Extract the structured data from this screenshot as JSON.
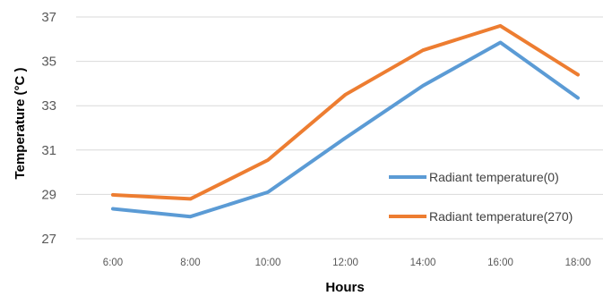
{
  "chart_data": {
    "type": "line",
    "title": "",
    "xlabel": "Hours",
    "ylabel": "Temperature (°C )",
    "categories": [
      "6:00",
      "8:00",
      "10:00",
      "12:00",
      "14:00",
      "16:00",
      "18:00"
    ],
    "yticks": [
      "27",
      "29",
      "31",
      "33",
      "35",
      "37"
    ],
    "ylim": [
      27,
      37
    ],
    "grid": true,
    "legend_position": "right",
    "series": [
      {
        "name": "Radiant temperature(0)",
        "color": "#5b9bd5",
        "values": [
          28.35,
          28.0,
          29.1,
          31.55,
          33.9,
          35.85,
          33.35
        ]
      },
      {
        "name": "Radiant temperature(270)",
        "color": "#ed7d31",
        "values": [
          28.98,
          28.8,
          30.55,
          33.5,
          35.5,
          36.6,
          34.4
        ]
      }
    ]
  }
}
